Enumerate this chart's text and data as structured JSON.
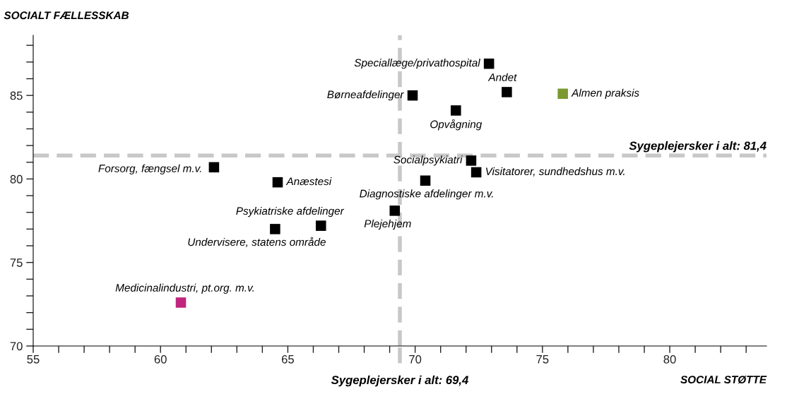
{
  "chart_data": {
    "type": "scatter",
    "xlabel": "SOCIAL STØTTE",
    "ylabel": "SOCIALT FÆLLESSKAB",
    "marker": "square",
    "legend": false,
    "grid": false,
    "xlim": [
      55,
      83.8
    ],
    "ylim": [
      70,
      88.6
    ],
    "xticks": [
      55,
      {
        "value": 56,
        "label": null
      },
      {
        "value": 57,
        "label": null
      },
      {
        "value": 58,
        "label": null
      },
      {
        "value": 59,
        "label": null
      },
      60,
      {
        "value": 61,
        "label": null
      },
      {
        "value": 62,
        "label": null
      },
      {
        "value": 63,
        "label": null
      },
      {
        "value": 64,
        "label": null
      },
      65,
      {
        "value": 66,
        "label": null
      },
      {
        "value": 67,
        "label": null
      },
      {
        "value": 68,
        "label": null
      },
      {
        "value": 69,
        "label": null
      },
      70,
      {
        "value": 71,
        "label": null
      },
      {
        "value": 72,
        "label": null
      },
      {
        "value": 73,
        "label": null
      },
      {
        "value": 74,
        "label": null
      },
      75,
      {
        "value": 76,
        "label": null
      },
      {
        "value": 77,
        "label": null
      },
      {
        "value": 78,
        "label": null
      },
      {
        "value": 79,
        "label": null
      },
      80,
      {
        "value": 81,
        "label": null
      },
      {
        "value": 82,
        "label": null
      },
      {
        "value": 83,
        "label": null
      }
    ],
    "yticks": [
      70,
      {
        "value": 71,
        "label": null
      },
      {
        "value": 72,
        "label": null
      },
      {
        "value": 73,
        "label": null
      },
      {
        "value": 74,
        "label": null
      },
      75,
      {
        "value": 76,
        "label": null
      },
      {
        "value": 77,
        "label": null
      },
      {
        "value": 78,
        "label": null
      },
      {
        "value": 79,
        "label": null
      },
      80,
      {
        "value": 81,
        "label": null
      },
      {
        "value": 82,
        "label": null
      },
      {
        "value": 83,
        "label": null
      },
      {
        "value": 84,
        "label": null
      },
      85,
      {
        "value": 86,
        "label": null
      },
      {
        "value": 87,
        "label": null
      },
      {
        "value": 88,
        "label": null
      }
    ],
    "x": [
      72.9,
      73.6,
      75.8,
      69.9,
      71.6,
      72.2,
      72.4,
      62.1,
      64.6,
      70.4,
      69.2,
      66.3,
      64.5,
      60.8
    ],
    "values": [
      86.9,
      85.2,
      85.1,
      85.0,
      84.1,
      81.1,
      80.4,
      80.7,
      79.8,
      79.9,
      78.1,
      77.2,
      77.0,
      72.6
    ],
    "colors": [
      "#000000",
      "#000000",
      "#7a9a2e",
      "#000000",
      "#000000",
      "#000000",
      "#000000",
      "#000000",
      "#000000",
      "#000000",
      "#000000",
      "#000000",
      "#000000",
      "#c0267d"
    ],
    "annotations": [
      {
        "text": "Speciallæge/privathospital",
        "x": 72.9,
        "y": 86.9
      },
      {
        "text": "Andet",
        "x": 73.6,
        "y": 85.2
      },
      {
        "text": "Almen praksis",
        "x": 75.8,
        "y": 85.1
      },
      {
        "text": "Børneafdelinger",
        "x": 69.9,
        "y": 85.0
      },
      {
        "text": "Opvågning",
        "x": 71.6,
        "y": 84.1
      },
      {
        "text": "Socialpsykiatri",
        "x": 72.2,
        "y": 81.1
      },
      {
        "text": "Visitatorer, sundhedshus m.v.",
        "x": 72.4,
        "y": 80.4
      },
      {
        "text": "Forsorg, fængsel m.v.",
        "x": 62.1,
        "y": 80.7
      },
      {
        "text": "Anæstesi",
        "x": 64.6,
        "y": 79.8
      },
      {
        "text": "Diagnostiske afdelinger m.v.",
        "x": 70.4,
        "y": 79.9
      },
      {
        "text": "Plejehjem",
        "x": 69.2,
        "y": 78.1
      },
      {
        "text": "Psykiatriske afdelinger",
        "x": 66.3,
        "y": 77.2
      },
      {
        "text": "Undervisere, statens område",
        "x": 64.5,
        "y": 77.0
      },
      {
        "text": "Medicinalindustri, pt.org. m.v.",
        "x": 60.8,
        "y": 72.6
      }
    ],
    "ref_lines": [
      {
        "axis": "y",
        "value": 81.4,
        "label": "Sygeplejersker i alt: 81,4",
        "color": "#c8c8c8",
        "line_style": "dashed"
      },
      {
        "axis": "x",
        "value": 69.4,
        "label": "Sygeplejersker i alt: 69,4",
        "color": "#c8c8c8",
        "line_style": "dashed"
      }
    ]
  }
}
